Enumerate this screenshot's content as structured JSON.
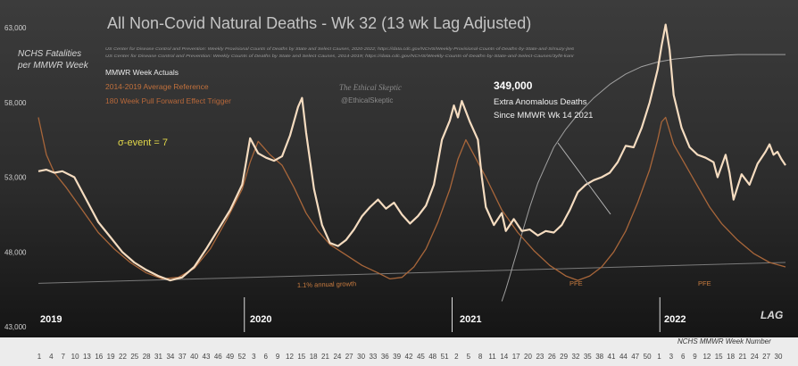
{
  "chart_data": {
    "type": "line",
    "title": "All Non-Covid Natural Deaths - Wk 32 (13 wk Lag Adjusted)",
    "ylabel_lines": [
      "NCHS Fatalities",
      "per MMWR Week"
    ],
    "xlabel": "NCHS MMWR Week Number",
    "sources": [
      "US Center for Disease Control and Prevention: Weekly Provisional Counts of Deaths by State and Select Causes, 2020-2022; https://data.cdc.gov/NCHS/Weekly-Provisional-Counts-of-Deaths-by-State-and-S/muzy-jte6",
      "US Center for Disease Control and Prevention: Weekly Counts of Deaths by State and Select Causes, 2014-2019; https://data.cdc.gov/NCHS/Weekly-Counts-of-Deaths-by-State-and-Select-Causes/3yf8-kanr"
    ],
    "legend": [
      "MMWR Week Actuals",
      "2014-2019 Average Reference",
      "180 Week Pull Forward Effect Trigger"
    ],
    "watermark": [
      "The Ethical Skeptic",
      "@EthicalSkeptic"
    ],
    "annotations": {
      "event": "σ-event = 7",
      "excess_value": "349,000",
      "excess_line1": "Extra Anomalous Deaths",
      "excess_line2": "Since MMWR Wk 14 2021",
      "growth": "1.1% annual growth",
      "pfe1": "PFE",
      "pfe2": "PFE",
      "lag": "LAG"
    },
    "years": [
      "2019",
      "2020",
      "2021",
      "2022"
    ],
    "y_ticks": [
      "63,000",
      "58,000",
      "53,000",
      "48,000",
      "43,000"
    ],
    "ylim": [
      43000,
      63000
    ],
    "x_tick_labels": [
      "1",
      "4",
      "7",
      "10",
      "13",
      "16",
      "19",
      "22",
      "25",
      "28",
      "31",
      "34",
      "37",
      "40",
      "43",
      "46",
      "49",
      "52",
      "3",
      "6",
      "9",
      "12",
      "15",
      "18",
      "21",
      "24",
      "27",
      "30",
      "33",
      "36",
      "39",
      "42",
      "45",
      "48",
      "51",
      "2",
      "5",
      "8",
      "11",
      "14",
      "17",
      "20",
      "23",
      "26",
      "29",
      "32",
      "35",
      "38",
      "41",
      "44",
      "47",
      "50",
      "1",
      "3",
      "6",
      "9",
      "12",
      "15",
      "18",
      "21",
      "24",
      "27",
      "30"
    ],
    "x_range": [
      1,
      188
    ],
    "year_starts": [
      1,
      53,
      105,
      157
    ],
    "series": [
      {
        "name": "MMWR Week Actuals",
        "color": "#f5dcc0",
        "width": 2.2,
        "points": [
          [
            1,
            53400
          ],
          [
            3,
            53500
          ],
          [
            5,
            53300
          ],
          [
            7,
            53400
          ],
          [
            10,
            53000
          ],
          [
            13,
            51500
          ],
          [
            16,
            50000
          ],
          [
            19,
            49000
          ],
          [
            22,
            48000
          ],
          [
            25,
            47300
          ],
          [
            28,
            46800
          ],
          [
            31,
            46400
          ],
          [
            34,
            46100
          ],
          [
            37,
            46300
          ],
          [
            40,
            47000
          ],
          [
            43,
            48200
          ],
          [
            46,
            49500
          ],
          [
            49,
            50800
          ],
          [
            52,
            52500
          ],
          [
            53,
            54000
          ],
          [
            54,
            55600
          ],
          [
            56,
            54600
          ],
          [
            58,
            54300
          ],
          [
            60,
            54100
          ],
          [
            62,
            54400
          ],
          [
            64,
            55800
          ],
          [
            66,
            57700
          ],
          [
            67,
            58300
          ],
          [
            68,
            56000
          ],
          [
            70,
            52200
          ],
          [
            72,
            49800
          ],
          [
            74,
            48600
          ],
          [
            76,
            48400
          ],
          [
            78,
            48800
          ],
          [
            80,
            49500
          ],
          [
            82,
            50400
          ],
          [
            84,
            51000
          ],
          [
            86,
            51500
          ],
          [
            88,
            50900
          ],
          [
            90,
            51300
          ],
          [
            92,
            50500
          ],
          [
            94,
            49900
          ],
          [
            96,
            50400
          ],
          [
            98,
            51100
          ],
          [
            100,
            52500
          ],
          [
            102,
            55500
          ],
          [
            104,
            56800
          ],
          [
            105,
            57800
          ],
          [
            106,
            57000
          ],
          [
            107,
            58100
          ],
          [
            109,
            56700
          ],
          [
            111,
            55500
          ],
          [
            112,
            53000
          ],
          [
            113,
            51000
          ],
          [
            115,
            49800
          ],
          [
            117,
            50600
          ],
          [
            118,
            49400
          ],
          [
            120,
            50200
          ],
          [
            122,
            49400
          ],
          [
            124,
            49500
          ],
          [
            126,
            49100
          ],
          [
            128,
            49400
          ],
          [
            130,
            49300
          ],
          [
            132,
            49800
          ],
          [
            134,
            50800
          ],
          [
            136,
            52000
          ],
          [
            138,
            52500
          ],
          [
            140,
            52800
          ],
          [
            142,
            53000
          ],
          [
            144,
            53300
          ],
          [
            146,
            54000
          ],
          [
            148,
            55100
          ],
          [
            150,
            55000
          ],
          [
            152,
            56300
          ],
          [
            154,
            58000
          ],
          [
            156,
            60200
          ],
          [
            157,
            61800
          ],
          [
            158,
            63200
          ],
          [
            159,
            61500
          ],
          [
            160,
            58500
          ],
          [
            162,
            56300
          ],
          [
            164,
            55000
          ],
          [
            166,
            54500
          ],
          [
            168,
            54300
          ],
          [
            170,
            54000
          ],
          [
            171,
            53000
          ],
          [
            173,
            54500
          ],
          [
            174,
            53300
          ],
          [
            175,
            51500
          ],
          [
            177,
            53200
          ],
          [
            179,
            52500
          ],
          [
            181,
            53900
          ],
          [
            183,
            54700
          ],
          [
            184,
            55200
          ],
          [
            185,
            54500
          ],
          [
            186,
            54700
          ],
          [
            187,
            54200
          ],
          [
            188,
            53800
          ]
        ]
      },
      {
        "name": "2014-2019 Average Reference",
        "color": "#a8663a",
        "width": 1.3,
        "points": [
          [
            1,
            57000
          ],
          [
            3,
            54500
          ],
          [
            5,
            53300
          ],
          [
            8,
            52300
          ],
          [
            12,
            50800
          ],
          [
            16,
            49300
          ],
          [
            20,
            48200
          ],
          [
            24,
            47300
          ],
          [
            28,
            46600
          ],
          [
            32,
            46200
          ],
          [
            36,
            46300
          ],
          [
            40,
            46900
          ],
          [
            44,
            48200
          ],
          [
            48,
            50100
          ],
          [
            52,
            52200
          ],
          [
            54,
            54000
          ],
          [
            56,
            55400
          ],
          [
            59,
            54500
          ],
          [
            62,
            53800
          ],
          [
            65,
            52300
          ],
          [
            68,
            50600
          ],
          [
            71,
            49400
          ],
          [
            74,
            48500
          ],
          [
            78,
            47800
          ],
          [
            82,
            47100
          ],
          [
            86,
            46600
          ],
          [
            89,
            46200
          ],
          [
            92,
            46300
          ],
          [
            95,
            47000
          ],
          [
            98,
            48200
          ],
          [
            101,
            50000
          ],
          [
            104,
            52200
          ],
          [
            106,
            54200
          ],
          [
            108,
            55500
          ],
          [
            110,
            54500
          ],
          [
            113,
            53000
          ],
          [
            117,
            50800
          ],
          [
            121,
            49300
          ],
          [
            125,
            48100
          ],
          [
            129,
            47100
          ],
          [
            133,
            46400
          ],
          [
            136,
            46100
          ],
          [
            139,
            46400
          ],
          [
            142,
            47000
          ],
          [
            145,
            48000
          ],
          [
            148,
            49400
          ],
          [
            151,
            51300
          ],
          [
            154,
            53500
          ],
          [
            156,
            55500
          ],
          [
            157,
            56700
          ],
          [
            158,
            57000
          ],
          [
            160,
            55200
          ],
          [
            163,
            53800
          ],
          [
            166,
            52400
          ],
          [
            169,
            51000
          ],
          [
            172,
            49900
          ],
          [
            176,
            48800
          ],
          [
            180,
            47900
          ],
          [
            184,
            47300
          ],
          [
            188,
            47000
          ]
        ]
      },
      {
        "name": "180 Week Pull Forward Effect Trigger",
        "color": "#a0a0a0",
        "width": 1.0,
        "points": [
          [
            117,
            44700
          ],
          [
            118,
            45500
          ],
          [
            119,
            46400
          ],
          [
            120,
            47300
          ],
          [
            121,
            48200
          ],
          [
            122,
            49200
          ],
          [
            124,
            51000
          ],
          [
            126,
            52600
          ],
          [
            128,
            53800
          ],
          [
            130,
            55000
          ],
          [
            133,
            56200
          ],
          [
            136,
            57200
          ],
          [
            140,
            58300
          ],
          [
            144,
            59200
          ],
          [
            148,
            59900
          ],
          [
            152,
            60400
          ],
          [
            156,
            60700
          ],
          [
            160,
            60900
          ],
          [
            164,
            61000
          ],
          [
            168,
            61100
          ],
          [
            172,
            61150
          ],
          [
            176,
            61200
          ],
          [
            180,
            61200
          ],
          [
            185,
            61200
          ],
          [
            188,
            61200
          ]
        ]
      },
      {
        "name": "1.1% annual growth",
        "color": "#7a7a7a",
        "width": 1.0,
        "points": [
          [
            1,
            45900
          ],
          [
            188,
            47300
          ]
        ]
      }
    ]
  }
}
